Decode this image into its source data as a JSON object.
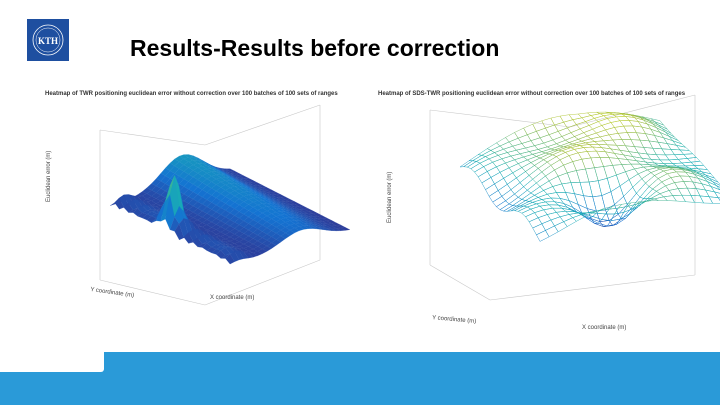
{
  "slide": {
    "title": "Results-Results before correction"
  },
  "logo": {
    "text": "KTH"
  },
  "figures": [
    {
      "title": "Heatmap of TWR positioning euclidean error without correction over 100 batches of 100 sets of ranges",
      "zlabel": "Euclidean error (m)",
      "xlabel": "X coordinate (m)",
      "ylabel": "Y coordinate (m)",
      "colormap": "parula"
    },
    {
      "title": "Heatmap of SDS-TWR positioning euclidean error without correction over 100 batches of 100 sets of ranges",
      "zlabel": "Euclidean error (m)",
      "xlabel": "X coordinate (m)",
      "ylabel": "Y coordinate (m)",
      "colormap": "parula"
    }
  ],
  "colors": {
    "footer": "#2a9ad8",
    "logo": "#1e4fa0"
  }
}
